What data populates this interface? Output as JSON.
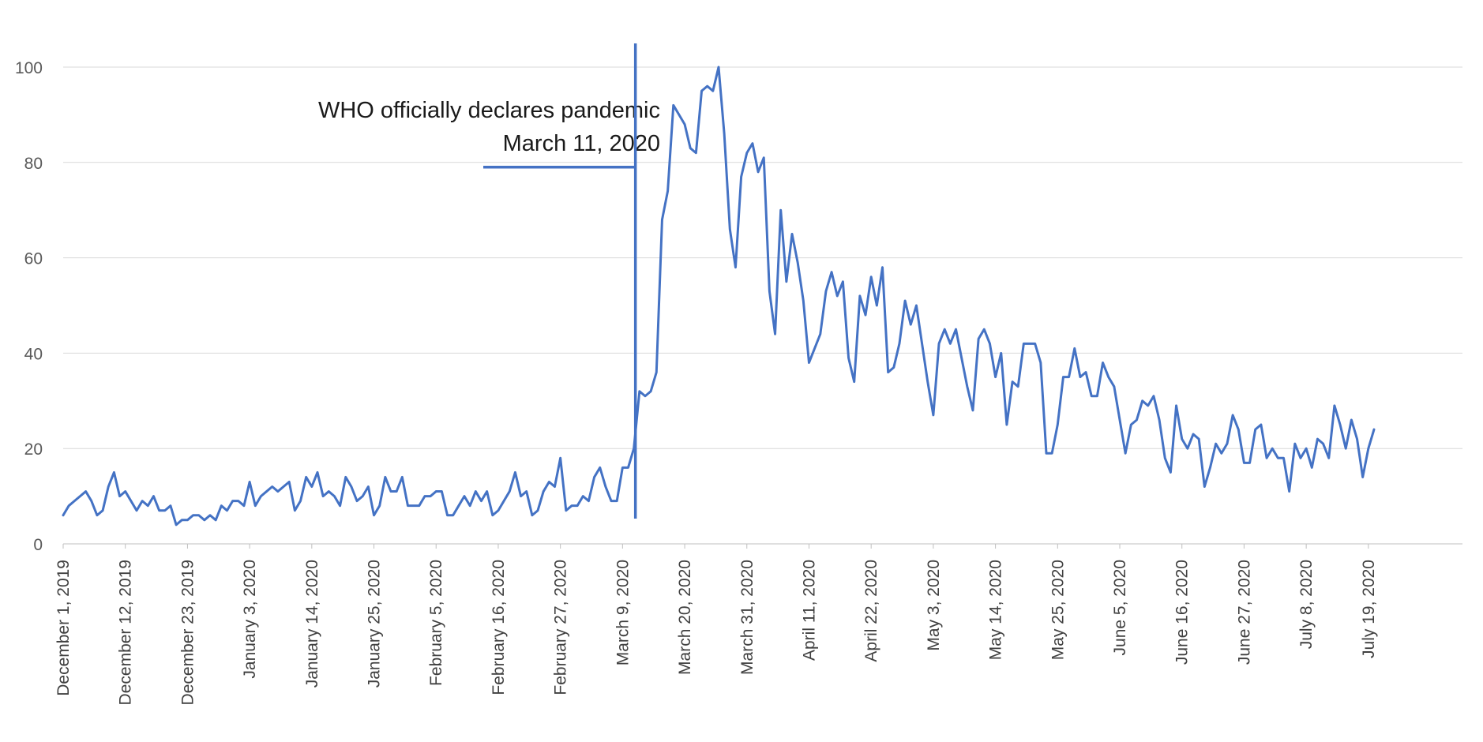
{
  "chart_data": {
    "type": "line",
    "title": "",
    "xlabel": "",
    "ylabel": "",
    "ylim": [
      0,
      105
    ],
    "yticks": [
      0,
      20,
      40,
      60,
      80,
      100
    ],
    "grid": true,
    "legend": "none",
    "line_color": "#4472c4",
    "grid_color": "#d9d9d9",
    "x_start_label": "December 1, 2019",
    "x_tick_labels": [
      "December 1, 2019",
      "December 12, 2019",
      "December 23, 2019",
      "January 3, 2020",
      "January 14, 2020",
      "January 25, 2020",
      "February 5, 2020",
      "February 16, 2020",
      "February 27, 2020",
      "March 9, 2020",
      "March 20, 2020",
      "March 31, 2020",
      "April 11, 2020",
      "April 22, 2020",
      "May 3, 2020",
      "May 14, 2020",
      "May 25, 2020",
      "June 5, 2020",
      "June 16, 2020",
      "June 27, 2020",
      "July 8, 2020",
      "July 19, 2020"
    ],
    "series": [
      {
        "values": [
          6,
          8,
          9,
          10,
          11,
          9,
          6,
          7,
          12,
          15,
          10,
          11,
          9,
          7,
          9,
          8,
          10,
          7,
          7,
          8,
          4,
          5,
          5,
          6,
          6,
          5,
          6,
          5,
          8,
          7,
          9,
          9,
          8,
          13,
          8,
          10,
          11,
          12,
          11,
          12,
          13,
          7,
          9,
          14,
          12,
          15,
          10,
          11,
          10,
          8,
          14,
          12,
          9,
          10,
          12,
          6,
          8,
          14,
          11,
          11,
          14,
          8,
          8,
          8,
          10,
          10,
          11,
          11,
          6,
          6,
          8,
          10,
          8,
          11,
          9,
          11,
          6,
          7,
          9,
          11,
          15,
          10,
          11,
          6,
          7,
          11,
          13,
          12,
          18,
          7,
          8,
          8,
          10,
          9,
          14,
          16,
          12,
          9,
          9,
          16,
          16,
          20,
          32,
          31,
          32,
          36,
          68,
          74,
          92,
          90,
          88,
          83,
          82,
          95,
          96,
          95,
          100,
          86,
          66,
          58,
          77,
          82,
          84,
          78,
          81,
          53,
          44,
          70,
          55,
          65,
          59,
          51,
          38,
          41,
          44,
          53,
          57,
          52,
          55,
          39,
          34,
          52,
          48,
          56,
          50,
          58,
          36,
          37,
          42,
          51,
          46,
          50,
          42,
          34,
          27,
          42,
          45,
          42,
          45,
          39,
          33,
          28,
          43,
          45,
          42,
          35,
          40,
          25,
          34,
          33,
          42,
          42,
          42,
          38,
          19,
          19,
          25,
          35,
          35,
          41,
          35,
          36,
          31,
          31,
          38,
          35,
          33,
          26,
          19,
          25,
          26,
          30,
          29,
          31,
          26,
          18,
          15,
          29,
          22,
          20,
          23,
          22,
          12,
          16,
          21,
          19,
          21,
          27,
          24,
          17,
          17,
          24,
          25,
          18,
          20,
          18,
          18,
          11,
          21,
          18,
          20,
          16,
          22,
          21,
          18,
          29,
          25,
          20,
          26,
          22,
          14,
          20,
          24
        ]
      }
    ],
    "annotation": {
      "line1": "WHO officially declares pandemic",
      "line2": "March 11, 2020",
      "x_index": 101,
      "label_y_value": 80
    }
  }
}
